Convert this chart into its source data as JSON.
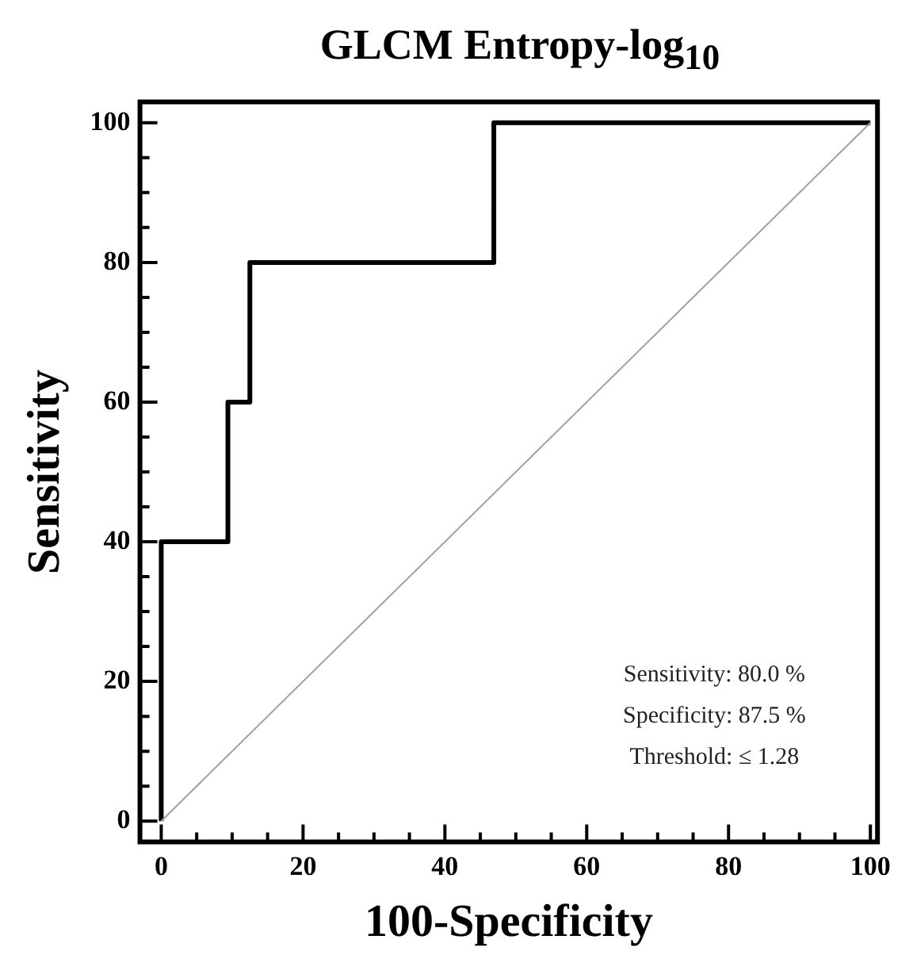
{
  "chart_data": {
    "type": "line",
    "title": "GLCM Entropy-log$_{10}$",
    "xlabel": "100-Specificity",
    "ylabel": "Sensitivity",
    "xlim": [
      -3,
      101
    ],
    "ylim": [
      -3,
      103
    ],
    "xticks": [
      0,
      {
        "value": 5,
        "label": null
      },
      {
        "value": 10,
        "label": null
      },
      {
        "value": 15,
        "label": null
      },
      20,
      {
        "value": 25,
        "label": null
      },
      {
        "value": 30,
        "label": null
      },
      {
        "value": 35,
        "label": null
      },
      40,
      {
        "value": 45,
        "label": null
      },
      {
        "value": 50,
        "label": null
      },
      {
        "value": 55,
        "label": null
      },
      60,
      {
        "value": 65,
        "label": null
      },
      {
        "value": 70,
        "label": null
      },
      {
        "value": 75,
        "label": null
      },
      80,
      {
        "value": 85,
        "label": null
      },
      {
        "value": 90,
        "label": null
      },
      {
        "value": 95,
        "label": null
      },
      100
    ],
    "yticks": [
      0,
      {
        "value": 5,
        "label": null
      },
      {
        "value": 10,
        "label": null
      },
      {
        "value": 15,
        "label": null
      },
      20,
      {
        "value": 25,
        "label": null
      },
      {
        "value": 30,
        "label": null
      },
      {
        "value": 35,
        "label": null
      },
      40,
      {
        "value": 45,
        "label": null
      },
      {
        "value": 50,
        "label": null
      },
      {
        "value": 55,
        "label": null
      },
      60,
      {
        "value": 65,
        "label": null
      },
      {
        "value": 70,
        "label": null
      },
      {
        "value": 75,
        "label": null
      },
      80,
      {
        "value": 85,
        "label": null
      },
      {
        "value": 90,
        "label": null
      },
      {
        "value": 95,
        "label": null
      },
      100
    ],
    "series": [
      {
        "color": "#000000",
        "x": [
          0,
          0,
          9.4,
          9.4,
          12.5,
          12.5,
          46.9,
          46.9,
          100
        ],
        "values": [
          0,
          40,
          40,
          60,
          60,
          80,
          80,
          100,
          100
        ]
      },
      {
        "color": "#a0a0a0",
        "x": [
          0,
          100
        ],
        "values": [
          0,
          100
        ]
      }
    ],
    "annotations": [
      "Sensitivity: 80.0 %",
      "Specificity: 87.5 %",
      "Threshold: ≤ 1.28"
    ],
    "grid": false,
    "legend": false,
    "marker": "none",
    "line_style": "solid"
  }
}
